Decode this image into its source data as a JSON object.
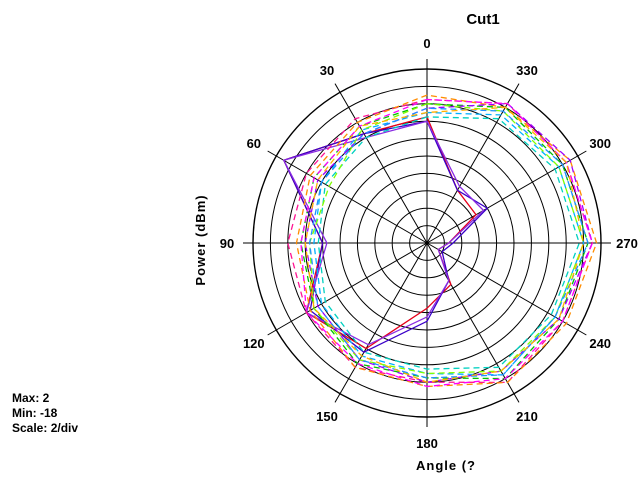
{
  "chart_data": {
    "type": "polar-line",
    "title": "Cut1",
    "xlabel": "Angle (?",
    "ylabel": "Power (dBm)",
    "r_range": [
      -18,
      2
    ],
    "r_step": 2,
    "angle_direction": "counterclockwise",
    "zero_at": "top",
    "angle_ticks": [
      "0",
      "30",
      "60",
      "90",
      "120",
      "150",
      "180",
      "210",
      "240",
      "270",
      "300",
      "330"
    ],
    "angles": [
      0,
      30,
      60,
      90,
      120,
      150,
      180,
      210,
      240,
      270,
      300,
      330
    ],
    "series": [
      {
        "color": "#e6001a",
        "style": "solid",
        "values": [
          -3.5,
          -3.5,
          1.0,
          -6.0,
          -2.0,
          -4.0,
          -10.5,
          -12.5,
          -16.5,
          -15.5,
          -11.5,
          -11.0
        ]
      },
      {
        "color": "#3a00c8",
        "style": "solid",
        "values": [
          -4.0,
          -3.5,
          1.0,
          -6.0,
          -2.5,
          -3.5,
          -9.0,
          -13.0,
          -16.0,
          -15.0,
          -10.0,
          -11.0
        ]
      },
      {
        "color": "#8a2be2",
        "style": "solid",
        "values": [
          -4.0,
          -4.0,
          1.0,
          -6.5,
          -2.0,
          -4.5,
          -9.5,
          -13.0,
          -16.5,
          -15.5,
          -10.5,
          -10.5
        ]
      },
      {
        "color": "#ff1493",
        "style": "dashed",
        "values": [
          -1.5,
          -1.5,
          -2.0,
          -2.0,
          -2.0,
          -1.5,
          -2.0,
          0.5,
          0.0,
          1.0,
          0.5,
          0.5
        ]
      },
      {
        "color": "#00c000",
        "style": "dashed",
        "values": [
          -2.0,
          -2.5,
          -3.0,
          -3.5,
          -3.0,
          -2.0,
          -2.5,
          0.0,
          -0.5,
          0.5,
          0.0,
          0.0
        ]
      },
      {
        "color": "#00b0ff",
        "style": "dashed",
        "values": [
          -3.0,
          -3.0,
          -4.0,
          -5.0,
          -4.0,
          -3.0,
          -3.0,
          -0.5,
          -1.0,
          0.0,
          -0.5,
          -1.0
        ]
      },
      {
        "color": "#ff8c00",
        "style": "dashed",
        "values": [
          -1.0,
          -2.0,
          -2.5,
          -3.0,
          -2.5,
          -1.5,
          -1.5,
          0.5,
          0.5,
          1.5,
          1.0,
          0.0
        ]
      },
      {
        "color": "#a000ff",
        "style": "dashed",
        "values": [
          -2.5,
          -3.5,
          -3.5,
          -4.0,
          -3.5,
          -2.5,
          -2.0,
          -1.0,
          -0.5,
          1.0,
          1.0,
          0.5
        ]
      },
      {
        "color": "#00d0c0",
        "style": "dashed",
        "values": [
          -3.5,
          -4.0,
          -4.5,
          -5.5,
          -4.5,
          -3.5,
          -3.5,
          -1.5,
          -1.5,
          -0.5,
          -1.0,
          -1.5
        ]
      },
      {
        "color": "#7fff00",
        "style": "dashed",
        "values": [
          -2.0,
          -3.0,
          -5.0,
          -4.5,
          -3.0,
          -2.5,
          -3.0,
          -1.0,
          -1.0,
          0.0,
          -0.5,
          -0.5
        ]
      },
      {
        "color": "#ff00ff",
        "style": "dashed",
        "values": [
          -1.5,
          -2.5,
          -3.0,
          -3.5,
          -2.0,
          -2.0,
          -1.5,
          0.0,
          0.0,
          1.0,
          0.5,
          0.5
        ]
      },
      {
        "color": "#1e90ff",
        "style": "dashed",
        "values": [
          -2.5,
          -3.5,
          -4.0,
          -4.5,
          -3.5,
          -2.5,
          -2.5,
          -0.5,
          -1.0,
          0.5,
          0.0,
          -0.5
        ]
      },
      {
        "color": "#ffb000",
        "style": "dashed",
        "values": [
          -3.0,
          -2.5,
          -3.5,
          -4.0,
          -3.0,
          -3.0,
          -2.0,
          -1.0,
          -0.5,
          0.0,
          0.5,
          0.0
        ]
      }
    ],
    "grid": true,
    "legend": "none"
  },
  "stats": {
    "max": "Max: 2",
    "min": "Min: -18",
    "scale": "Scale: 2/div"
  }
}
